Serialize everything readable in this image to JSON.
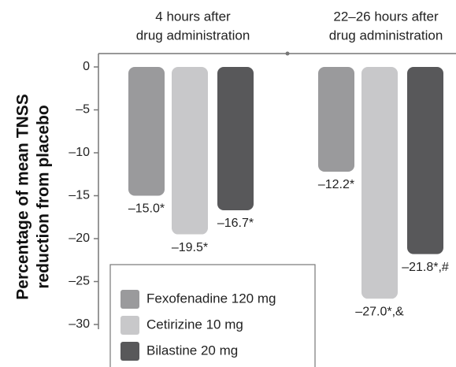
{
  "chart_data": {
    "type": "bar",
    "ylabel": [
      "Percentage of mean TNSS",
      "reduction from placebo"
    ],
    "categories": [
      [
        "4 hours after",
        "drug administration"
      ],
      [
        "22–26 hours after",
        "drug administration"
      ]
    ],
    "series": [
      {
        "name": "Fexofenadine 120 mg",
        "color": "#9a9a9c",
        "values": [
          -15.0,
          -12.2
        ],
        "value_labels": [
          "–15.0*",
          "–12.2*"
        ]
      },
      {
        "name": "Cetirizine 10 mg",
        "color": "#c8c8ca",
        "values": [
          -19.5,
          -27.0
        ],
        "value_labels": [
          "–19.5*",
          "–27.0*,&"
        ]
      },
      {
        "name": "Bilastine 20 mg",
        "color": "#58585a",
        "values": [
          -16.7,
          -21.8
        ],
        "value_labels": [
          "–16.7*",
          "–21.8*,#"
        ]
      }
    ],
    "ylim": [
      -30,
      0
    ],
    "yticks": [
      0,
      {
        "value": -5,
        "label": "–5"
      },
      {
        "value": -10,
        "label": "–10"
      },
      {
        "value": -15,
        "label": "–15"
      },
      {
        "value": -20,
        "label": "–20"
      },
      {
        "value": -25,
        "label": "–25"
      },
      {
        "value": -30,
        "label": "–30"
      }
    ],
    "grid": false,
    "legend": "lower left"
  }
}
